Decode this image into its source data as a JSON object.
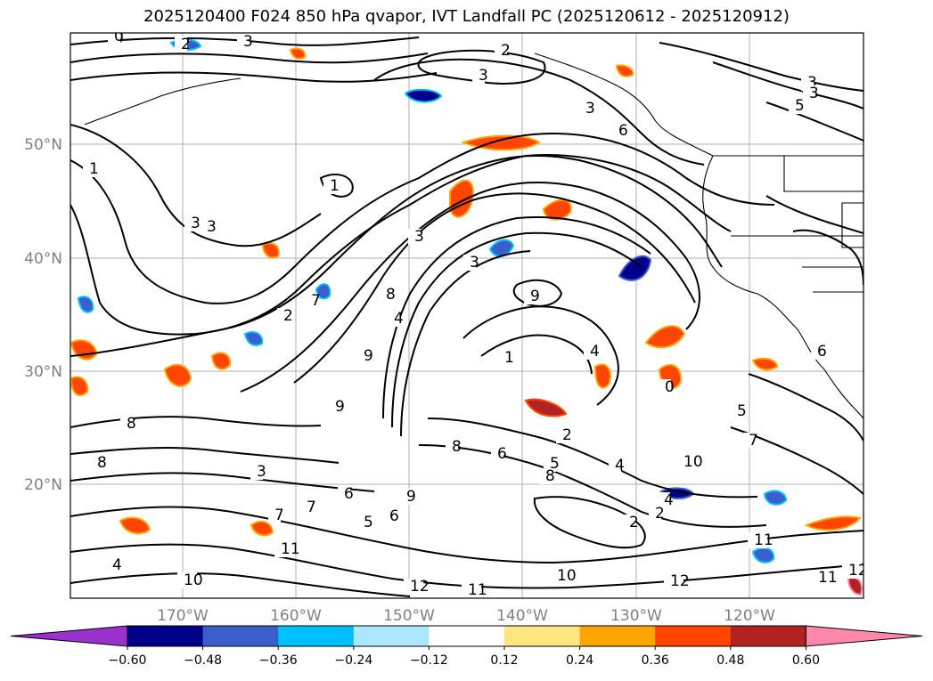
{
  "title": "2025120400 F024 850 hPa qvapor, IVT Landfall PC (2025120612 - 2025120912)",
  "lat_labels": [
    "50°N",
    "40°N",
    "30°N",
    "20°N"
  ],
  "lon_labels": [
    "170°W",
    "160°W",
    "150°W",
    "140°W",
    "130°W",
    "120°W"
  ],
  "colorbar": {
    "ticks": [
      "−0.60",
      "−0.48",
      "−0.36",
      "−0.24",
      "−0.12",
      "0.12",
      "0.24",
      "0.36",
      "0.48",
      "0.60"
    ],
    "colors": [
      "#9932cc",
      "#00008b",
      "#3a5fcd",
      "#00bfff",
      "#ade6ff",
      "#ffffff",
      "#ffe680",
      "#ffa500",
      "#ff4500",
      "#b22222",
      "#ff88aa"
    ]
  },
  "contour_labels": [
    "0",
    "3",
    "2",
    "3",
    "3",
    "5",
    "6",
    "2",
    "3",
    "3",
    "3",
    "1",
    "0",
    "3",
    "3",
    "8",
    "9",
    "4",
    "1",
    "7",
    "2",
    "4",
    "9",
    "9",
    "8",
    "8",
    "3",
    "5",
    "4",
    "10",
    "2",
    "8",
    "6",
    "7",
    "7",
    "6",
    "5",
    "9",
    "4",
    "11",
    "12",
    "10",
    "12",
    "11",
    "4",
    "10",
    "11",
    "6",
    "2",
    "2",
    "7",
    "8",
    "1",
    "0",
    "5",
    "6",
    "12",
    "11",
    "3"
  ],
  "colors": {
    "positive": "#ff4500",
    "negative": "#3a5fcd",
    "contour": "#000000",
    "grid": "#b0b0b0"
  }
}
